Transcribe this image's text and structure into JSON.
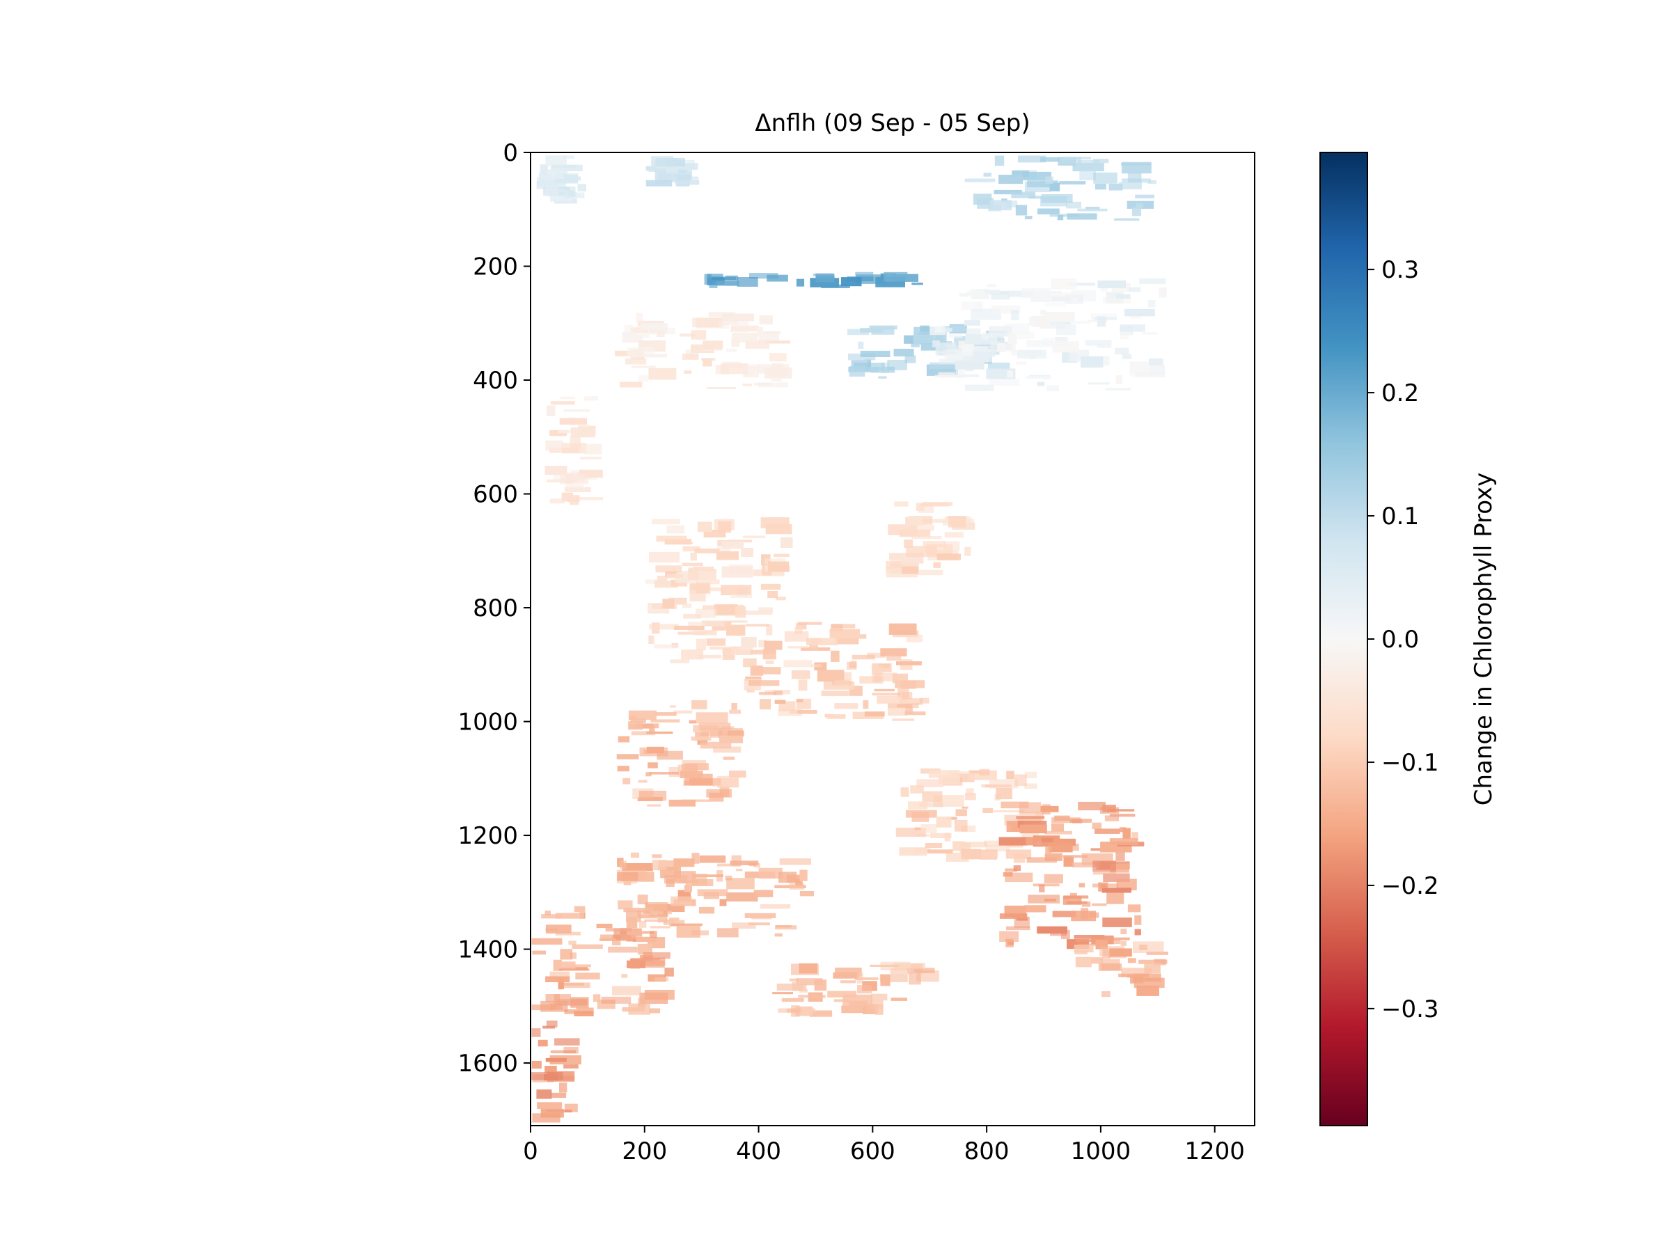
{
  "chart_data": {
    "type": "heatmap",
    "title": "Δnflh (09 Sep - 05 Sep)",
    "xlabel": "",
    "ylabel": "",
    "xlim": [
      0,
      1270
    ],
    "ylim": [
      1710,
      0
    ],
    "x_ticks": [
      0,
      200,
      400,
      600,
      800,
      1000,
      1200
    ],
    "y_ticks": [
      0,
      200,
      400,
      600,
      800,
      1000,
      1200,
      1400,
      1600
    ],
    "x_tick_labels": [
      "0",
      "200",
      "400",
      "600",
      "800",
      "1000",
      "1200"
    ],
    "y_tick_labels": [
      "0",
      "200",
      "400",
      "600",
      "800",
      "1000",
      "1200",
      "1400",
      "1600"
    ],
    "grid": false,
    "colorbar": {
      "label": "Change in Chlorophyll Proxy",
      "colormap": "RdBu",
      "vmin": -0.395,
      "vmax": 0.395,
      "ticks": [
        -0.3,
        -0.2,
        -0.1,
        0.0,
        0.1,
        0.2,
        0.3
      ],
      "tick_labels": [
        "−0.3",
        "−0.2",
        "−0.1",
        "0.0",
        "0.1",
        "0.2",
        "0.3"
      ],
      "stops": [
        "#67001f",
        "#b2182b",
        "#d6604d",
        "#f4a582",
        "#fddbc7",
        "#f7f7f7",
        "#d1e5f0",
        "#92c5de",
        "#4393c3",
        "#2166ac",
        "#053061"
      ]
    },
    "regions": [
      {
        "x": [
          10,
          100
        ],
        "y": [
          5,
          90
        ],
        "value": 0.05
      },
      {
        "x": [
          200,
          300
        ],
        "y": [
          5,
          60
        ],
        "value": 0.08
      },
      {
        "x": [
          760,
          1100
        ],
        "y": [
          5,
          120
        ],
        "value": 0.11
      },
      {
        "x": [
          300,
          700
        ],
        "y": [
          210,
          240
        ],
        "value": 0.22
      },
      {
        "x": [
          550,
          850
        ],
        "y": [
          300,
          400
        ],
        "value": 0.12
      },
      {
        "x": [
          140,
          460
        ],
        "y": [
          280,
          420
        ],
        "value": -0.04
      },
      {
        "x": [
          700,
          1120
        ],
        "y": [
          220,
          420
        ],
        "value": 0.02
      },
      {
        "x": [
          20,
          130
        ],
        "y": [
          420,
          620
        ],
        "value": -0.05
      },
      {
        "x": [
          620,
          780
        ],
        "y": [
          600,
          760
        ],
        "value": -0.08
      },
      {
        "x": [
          200,
          460
        ],
        "y": [
          640,
          900
        ],
        "value": -0.07
      },
      {
        "x": [
          360,
          700
        ],
        "y": [
          820,
          1000
        ],
        "value": -0.1
      },
      {
        "x": [
          150,
          380
        ],
        "y": [
          960,
          1150
        ],
        "value": -0.12
      },
      {
        "x": [
          640,
          900
        ],
        "y": [
          1080,
          1250
        ],
        "value": -0.09
      },
      {
        "x": [
          820,
          1080
        ],
        "y": [
          1140,
          1400
        ],
        "value": -0.16
      },
      {
        "x": [
          150,
          500
        ],
        "y": [
          1230,
          1380
        ],
        "value": -0.13
      },
      {
        "x": [
          0,
          260
        ],
        "y": [
          1320,
          1520
        ],
        "value": -0.14
      },
      {
        "x": [
          420,
          720
        ],
        "y": [
          1420,
          1520
        ],
        "value": -0.12
      },
      {
        "x": [
          0,
          90
        ],
        "y": [
          1520,
          1710
        ],
        "value": -0.17
      },
      {
        "x": [
          950,
          1130
        ],
        "y": [
          1380,
          1490
        ],
        "value": -0.13
      }
    ]
  }
}
